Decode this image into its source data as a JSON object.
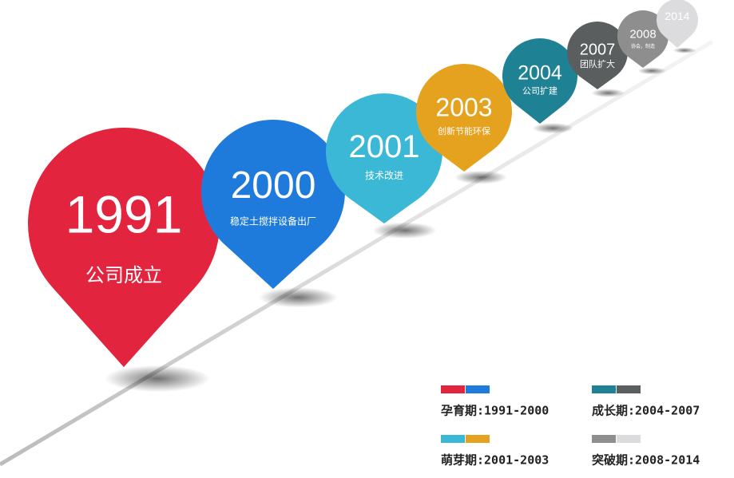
{
  "milestones": [
    {
      "year": "1991",
      "label": "公司成立",
      "color": "#e3243f"
    },
    {
      "year": "2000",
      "label": "稳定土搅拌设备出厂",
      "color": "#1f7bdb"
    },
    {
      "year": "2001",
      "label": "技术改进",
      "color": "#3bb8d6"
    },
    {
      "year": "2003",
      "label": "创新节能环保",
      "color": "#e5a21e"
    },
    {
      "year": "2004",
      "label": "公司扩建",
      "color": "#1f8294"
    },
    {
      "year": "2007",
      "label": "团队扩大",
      "color": "#5a5e5e"
    },
    {
      "year": "2008",
      "label": "协会，制造",
      "color": "#8e8e8e"
    },
    {
      "year": "2014",
      "color": "#dcdcdf"
    }
  ],
  "legend": [
    {
      "label": "孕育期:1991-2000",
      "colors": [
        "#e3243f",
        "#1f7bdb"
      ]
    },
    {
      "label": "成长期:2004-2007",
      "colors": [
        "#1f8294",
        "#5a5e5e"
      ]
    },
    {
      "label": "萌芽期:2001-2003",
      "colors": [
        "#3bb8d6",
        "#e5a21e"
      ]
    },
    {
      "label": "突破期:2008-2014",
      "colors": [
        "#8e8e8e",
        "#dcdcdf"
      ]
    }
  ]
}
